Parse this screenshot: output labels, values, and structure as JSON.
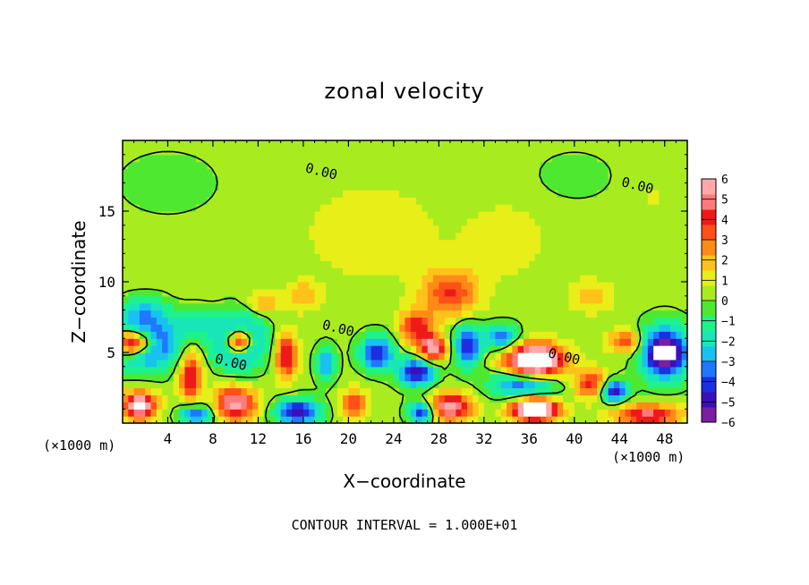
{
  "chart_data": {
    "type": "heatmap",
    "title": "zonal velocity",
    "xlabel": "X−coordinate",
    "ylabel": "Z−coordinate",
    "x_unit_left": "(×1000 m)",
    "x_unit_right": "(×1000 m)",
    "footer": "CONTOUR INTERVAL = 1.000E+01",
    "xlim": [
      0,
      50
    ],
    "ylim": [
      0,
      20
    ],
    "x_ticks": [
      4,
      8,
      12,
      16,
      20,
      24,
      28,
      32,
      36,
      40,
      44,
      48
    ],
    "y_ticks": [
      5,
      10,
      15
    ],
    "colorbar": {
      "min": -6,
      "max": 6,
      "ticks": [
        6,
        5,
        4,
        3,
        2,
        1,
        0,
        -1,
        -2,
        -3,
        -4,
        -5,
        -6
      ],
      "colors": [
        "#7a1f9e",
        "#3a10b8",
        "#1c2fe0",
        "#1f78ff",
        "#18c2f0",
        "#19e6b8",
        "#1ef28a",
        "#4fe830",
        "#a8ec20",
        "#e8ee18",
        "#ffc21a",
        "#ff8a18",
        "#ff5018",
        "#ee1a1a",
        "#ff7a7a",
        "#ffa8a8"
      ]
    },
    "contour_labels": [
      {
        "text": "0.00",
        "x": 17.5,
        "y": 17.5
      },
      {
        "text": "0.00",
        "x": 45.5,
        "y": 16.5
      },
      {
        "text": "0.00",
        "x": 19,
        "y": 6.4
      },
      {
        "text": "0.00",
        "x": 9.5,
        "y": 4.0
      },
      {
        "text": "0.00",
        "x": 39,
        "y": 4.4
      }
    ],
    "features": [
      {
        "x": 29.0,
        "y": 9.2,
        "sx": 2.5,
        "sy": 1.7,
        "v": 3.5
      },
      {
        "x": 22.0,
        "y": 13.5,
        "sx": 6.0,
        "sy": 3.5,
        "v": 1.0
      },
      {
        "x": 34.0,
        "y": 13.0,
        "sx": 4.0,
        "sy": 3.0,
        "v": 0.8
      },
      {
        "x": 26.0,
        "y": 6.8,
        "sx": 1.5,
        "sy": 1.2,
        "v": 4.0
      },
      {
        "x": 27.5,
        "y": 5.3,
        "sx": 1.2,
        "sy": 0.9,
        "v": 5.5
      },
      {
        "x": 36.5,
        "y": 4.4,
        "sx": 2.5,
        "sy": 1.2,
        "v": 9.0
      },
      {
        "x": 35.5,
        "y": 2.8,
        "sx": 3.0,
        "sy": 1.0,
        "v": -4.5
      },
      {
        "x": 33.5,
        "y": 6.1,
        "sx": 1.5,
        "sy": 0.9,
        "v": -4.0
      },
      {
        "x": 30.5,
        "y": 5.5,
        "sx": 1.2,
        "sy": 1.5,
        "v": -5.0
      },
      {
        "x": 26.0,
        "y": 3.6,
        "sx": 1.6,
        "sy": 1.0,
        "v": -5.5
      },
      {
        "x": 22.5,
        "y": 5.0,
        "sx": 1.5,
        "sy": 1.2,
        "v": -5.0
      },
      {
        "x": 18.0,
        "y": 4.2,
        "sx": 0.9,
        "sy": 1.2,
        "v": -3.5
      },
      {
        "x": 10.3,
        "y": 5.8,
        "sx": 1.2,
        "sy": 0.9,
        "v": 9.0
      },
      {
        "x": 10.3,
        "y": 5.8,
        "sx": 2.2,
        "sy": 1.8,
        "v": -6.0
      },
      {
        "x": 1.0,
        "y": 5.7,
        "sx": 1.8,
        "sy": 0.9,
        "v": 9.0
      },
      {
        "x": 2.0,
        "y": 5.7,
        "sx": 3.0,
        "sy": 1.8,
        "v": -6.0
      },
      {
        "x": 6.0,
        "y": 3.4,
        "sx": 1.0,
        "sy": 1.8,
        "v": 4.5
      },
      {
        "x": 14.5,
        "y": 4.8,
        "sx": 1.0,
        "sy": 1.6,
        "v": 4.5
      },
      {
        "x": 10.0,
        "y": 1.4,
        "sx": 1.8,
        "sy": 1.2,
        "v": 5.5
      },
      {
        "x": 1.5,
        "y": 1.3,
        "sx": 1.5,
        "sy": 1.0,
        "v": 6.5
      },
      {
        "x": 15.5,
        "y": 0.8,
        "sx": 2.0,
        "sy": 0.9,
        "v": -5.5
      },
      {
        "x": 6.5,
        "y": 0.6,
        "sx": 1.5,
        "sy": 0.7,
        "v": -4.5
      },
      {
        "x": 20.5,
        "y": 1.4,
        "sx": 1.2,
        "sy": 1.0,
        "v": 3.5
      },
      {
        "x": 29.0,
        "y": 1.2,
        "sx": 2.0,
        "sy": 1.0,
        "v": 5.5
      },
      {
        "x": 26.5,
        "y": 0.8,
        "sx": 1.2,
        "sy": 0.8,
        "v": -5.0
      },
      {
        "x": 36.5,
        "y": 1.0,
        "sx": 2.0,
        "sy": 0.8,
        "v": 9.0
      },
      {
        "x": 41.5,
        "y": 2.8,
        "sx": 1.5,
        "sy": 1.0,
        "v": 4.0
      },
      {
        "x": 43.5,
        "y": 2.3,
        "sx": 1.2,
        "sy": 0.8,
        "v": -5.5
      },
      {
        "x": 44.5,
        "y": 5.8,
        "sx": 1.5,
        "sy": 0.8,
        "v": 3.5
      },
      {
        "x": 46.5,
        "y": 0.6,
        "sx": 3.0,
        "sy": 0.8,
        "v": 4.5
      },
      {
        "x": 48.0,
        "y": 5.0,
        "sx": 2.0,
        "sy": 1.8,
        "v": -7.5
      },
      {
        "x": 6.5,
        "y": 7.2,
        "sx": 1.5,
        "sy": 1.0,
        "v": -2.0
      },
      {
        "x": 2.0,
        "y": 8.0,
        "sx": 2.0,
        "sy": 1.0,
        "v": -2.0
      },
      {
        "x": 12.5,
        "y": 8.5,
        "sx": 1.5,
        "sy": 0.8,
        "v": 2.0
      },
      {
        "x": 16.0,
        "y": 9.0,
        "sx": 1.5,
        "sy": 1.0,
        "v": 2.0
      },
      {
        "x": 41.5,
        "y": 9.0,
        "sx": 2.0,
        "sy": 1.2,
        "v": 1.5
      },
      {
        "x": 4.0,
        "y": 17.0,
        "sx": 4.0,
        "sy": 2.0,
        "v": -1.0
      },
      {
        "x": 40.0,
        "y": 17.5,
        "sx": 3.0,
        "sy": 1.5,
        "v": -1.0
      },
      {
        "x": 47.0,
        "y": 16.0,
        "sx": 2.0,
        "sy": 2.0,
        "v": 0.5
      }
    ],
    "background": 0.3
  }
}
